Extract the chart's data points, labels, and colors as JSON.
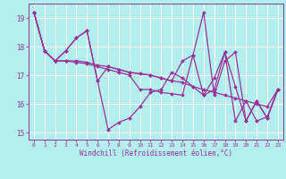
{
  "xlabel": "Windchill (Refroidissement éolien,°C)",
  "background_color": "#b2eeee",
  "grid_color": "#ffffff",
  "line_color": "#993399",
  "xlim": [
    -0.5,
    23.5
  ],
  "ylim": [
    14.75,
    19.5
  ],
  "yticks": [
    15,
    16,
    17,
    18,
    19
  ],
  "xticks": [
    0,
    1,
    2,
    3,
    4,
    5,
    6,
    7,
    8,
    9,
    10,
    11,
    12,
    13,
    14,
    15,
    16,
    17,
    18,
    19,
    20,
    21,
    22,
    23
  ],
  "curves": [
    [
      19.2,
      17.85,
      17.5,
      17.85,
      18.3,
      18.55,
      16.8,
      15.1,
      15.35,
      15.5,
      15.9,
      16.4,
      16.5,
      17.1,
      16.9,
      16.6,
      16.3,
      16.5,
      17.8,
      16.6,
      15.4,
      16.1,
      15.5,
      16.5
    ],
    [
      19.2,
      17.85,
      17.5,
      17.5,
      17.5,
      17.45,
      17.35,
      17.3,
      17.2,
      17.1,
      17.05,
      17.0,
      16.9,
      16.8,
      16.75,
      16.6,
      16.5,
      16.4,
      16.3,
      16.2,
      16.1,
      16.0,
      15.9,
      16.5
    ],
    [
      19.2,
      17.85,
      17.5,
      17.5,
      17.45,
      17.4,
      17.3,
      17.2,
      17.1,
      17.0,
      16.5,
      16.5,
      16.4,
      16.35,
      16.3,
      17.7,
      19.2,
      16.3,
      17.5,
      17.8,
      15.4,
      16.1,
      15.5,
      16.5
    ],
    [
      19.2,
      17.85,
      17.5,
      17.85,
      18.3,
      18.55,
      16.8,
      17.3,
      17.2,
      17.1,
      17.05,
      17.0,
      16.9,
      16.8,
      17.5,
      17.7,
      16.3,
      16.9,
      17.8,
      15.4,
      16.1,
      15.4,
      15.55,
      16.5
    ]
  ],
  "xlabel_fontsize": 5.5,
  "xtick_fontsize": 4.5,
  "ytick_fontsize": 5.5,
  "linewidth": 0.9,
  "markersize": 2.0
}
